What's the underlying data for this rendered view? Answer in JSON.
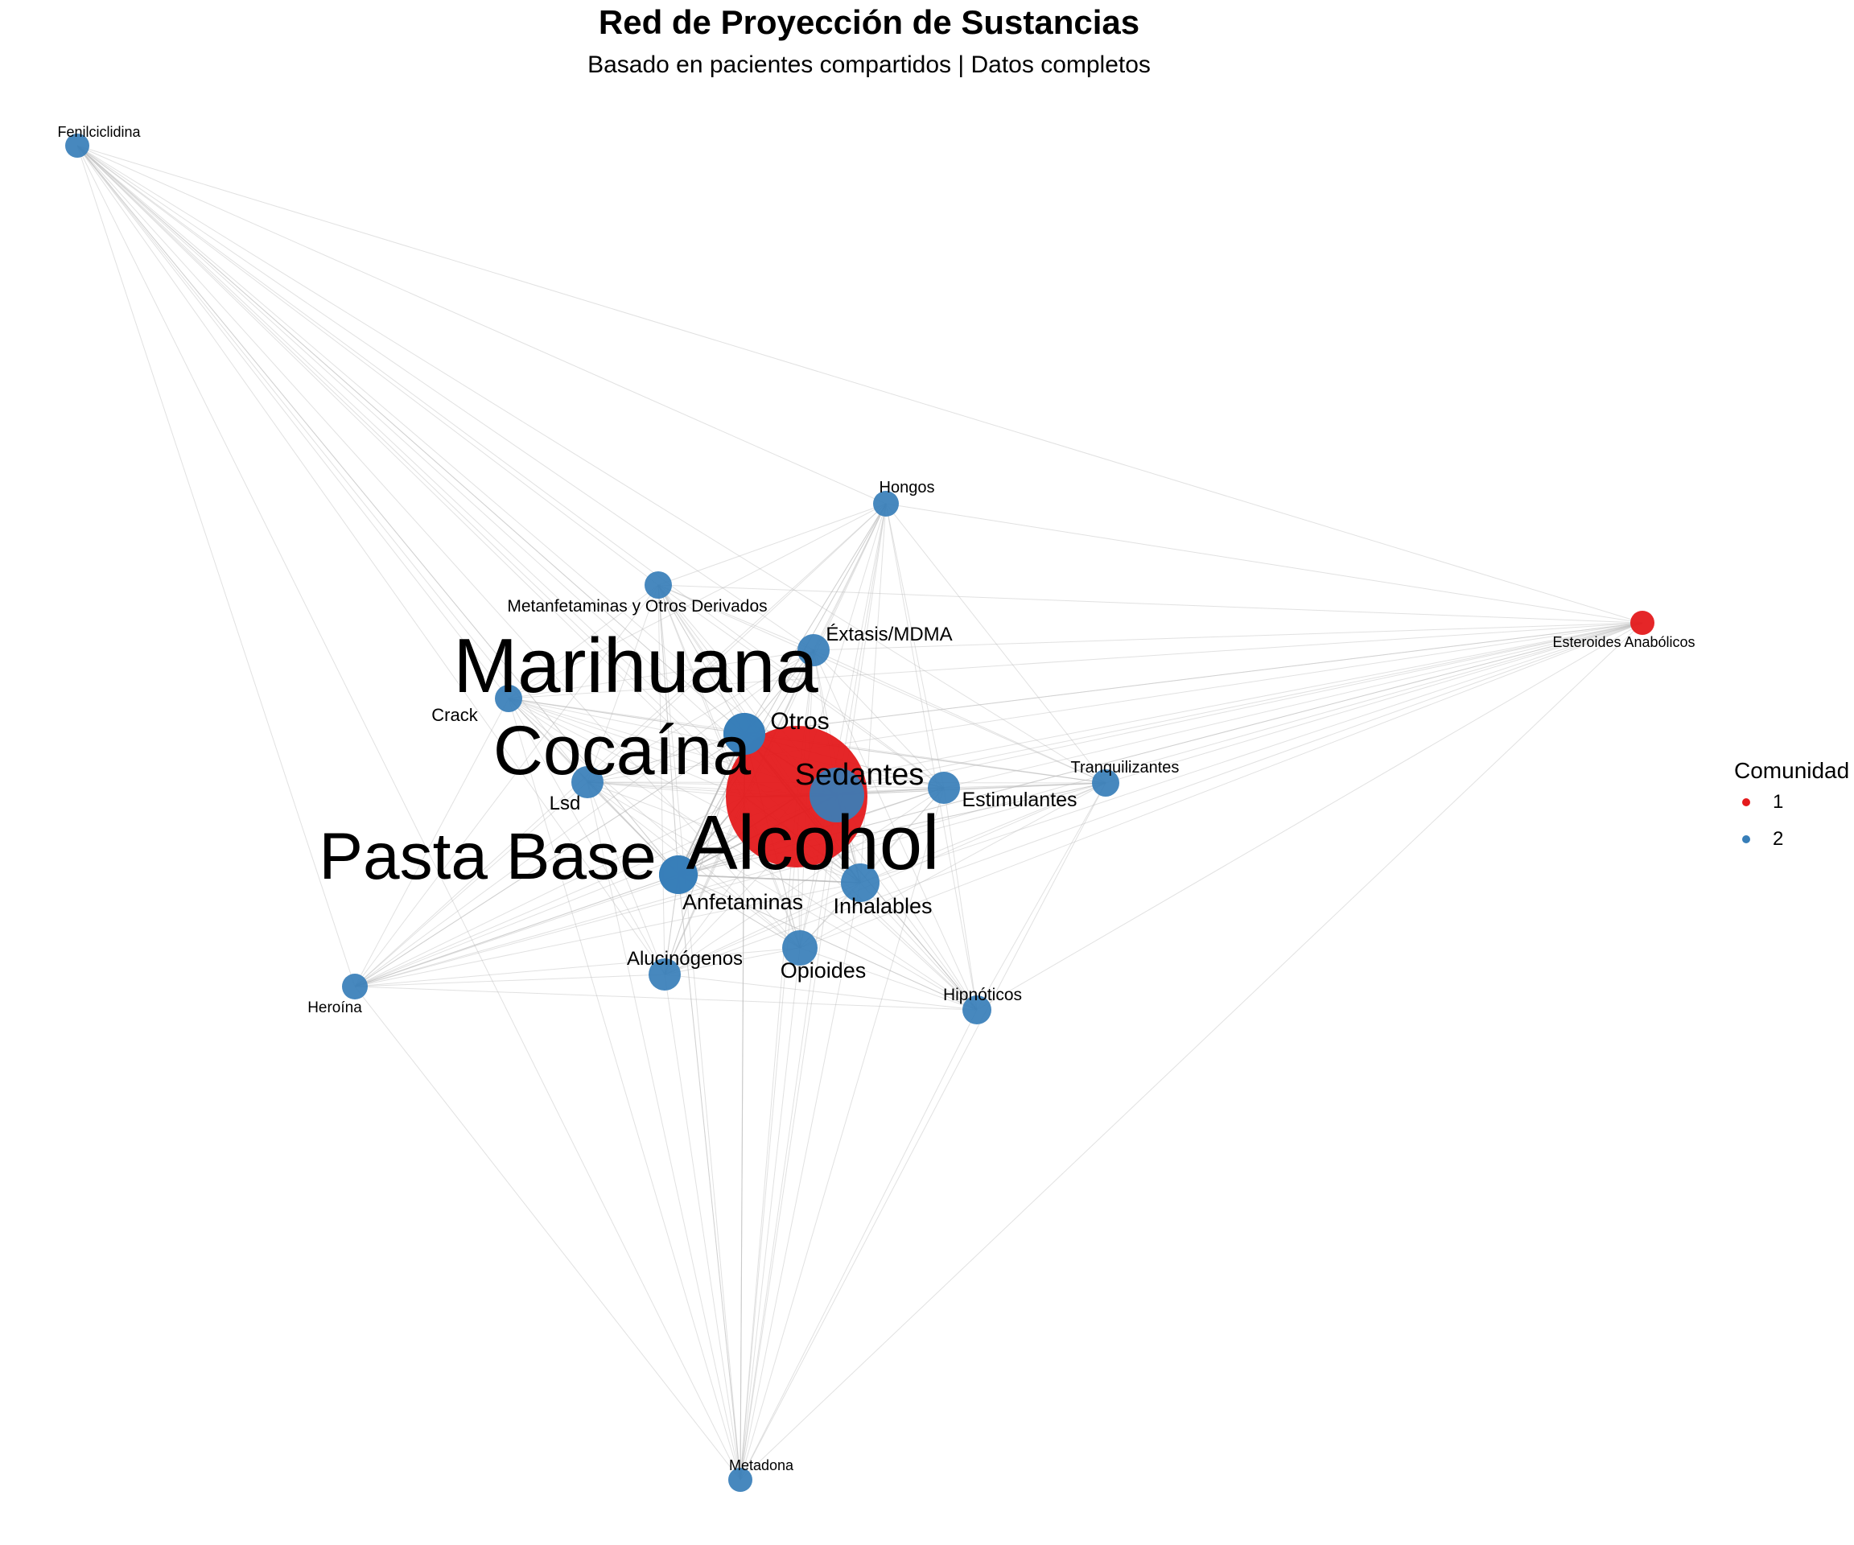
{
  "title": "Red de Proyección de Sustancias",
  "subtitle": "Basado en pacientes compartidos | Datos completos",
  "colors": {
    "community_1": "#E41A1C",
    "community_2": "#377EB8",
    "edge": "#bdbdbd"
  },
  "legend": {
    "title": "Comunidad",
    "items": [
      {
        "label": "1",
        "color": "#E41A1C"
      },
      {
        "label": "2",
        "color": "#377EB8"
      }
    ]
  },
  "nodes": [
    {
      "label": "Alcohol",
      "community": "1"
    },
    {
      "label": "Marihuana",
      "community": "2"
    },
    {
      "label": "Cocaína",
      "community": "2"
    },
    {
      "label": "Pasta Base",
      "community": "2"
    },
    {
      "label": "Sedantes",
      "community": "2"
    },
    {
      "label": "Otros",
      "community": "2"
    },
    {
      "label": "Anfetaminas",
      "community": "2"
    },
    {
      "label": "Inhalables",
      "community": "2"
    },
    {
      "label": "Opioides",
      "community": "2"
    },
    {
      "label": "Estimulantes",
      "community": "2"
    },
    {
      "label": "Lsd",
      "community": "2"
    },
    {
      "label": "Alucinógenos",
      "community": "2"
    },
    {
      "label": "Éxtasis/MDMA",
      "community": "2"
    },
    {
      "label": "Crack",
      "community": "2"
    },
    {
      "label": "Metanfetaminas y Otros Derivados",
      "community": "2"
    },
    {
      "label": "Hipnóticos",
      "community": "2"
    },
    {
      "label": "Tranquilizantes",
      "community": "2"
    },
    {
      "label": "Hongos",
      "community": "2"
    },
    {
      "label": "Heroína",
      "community": "2"
    },
    {
      "label": "Fenilciclidina",
      "community": "2"
    },
    {
      "label": "Metadona",
      "community": "2"
    },
    {
      "label": "Esteroides Anabólicos",
      "community": "1"
    }
  ]
}
